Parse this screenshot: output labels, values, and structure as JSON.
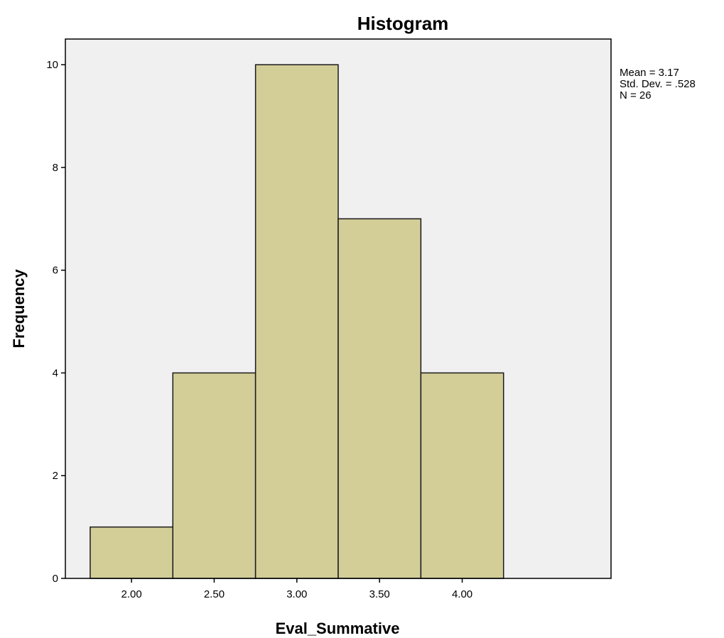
{
  "chart_data": {
    "type": "bar",
    "title": "Histogram",
    "xlabel": "Eval_Summative",
    "ylabel": "Frequency",
    "bin_edges": [
      1.75,
      2.25,
      2.75,
      3.25,
      3.75,
      4.25
    ],
    "values": [
      1,
      4,
      10,
      7,
      4
    ],
    "x_ticks": [
      2.0,
      2.5,
      3.0,
      3.5,
      4.0
    ],
    "x_tick_labels": [
      "2.00",
      "2.50",
      "3.00",
      "3.50",
      "4.00"
    ],
    "y_ticks": [
      0,
      2,
      4,
      6,
      8,
      10
    ],
    "y_tick_labels": [
      "0",
      "2",
      "4",
      "6",
      "8",
      "10"
    ],
    "xlim": [
      1.6,
      4.9
    ],
    "ylim": [
      0,
      10.5
    ],
    "grid": false,
    "legend_placement": "top-right",
    "stats": {
      "mean_label": "Mean = 3.17",
      "sd_label": "Std. Dev. = .528",
      "n_label": "N = 26"
    },
    "colors": {
      "bar_fill": "#d3ce98",
      "bar_stroke": "#1a1a1a",
      "plot_background": "#f0f0f0",
      "frame": "#000000"
    }
  }
}
